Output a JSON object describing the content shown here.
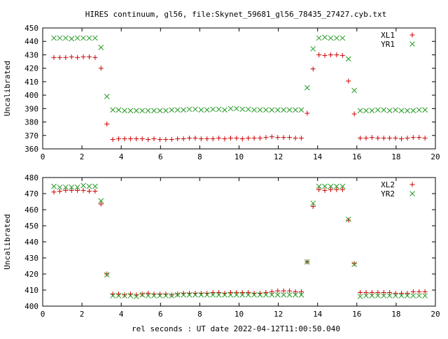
{
  "page": {
    "title": "HIRES continuum, gl56, file:Skynet_59681_gl56_78435_27427.cyb.txt",
    "xlabel": "rel seconds : UT date 2022-04-12T11:00:50.040"
  },
  "chart_data": [
    {
      "type": "scatter",
      "ylabel": "Uncalibrated",
      "xlim": [
        0,
        20
      ],
      "ylim": [
        360,
        450
      ],
      "xticks": [
        "0",
        "2",
        "4",
        "6",
        "8",
        "10",
        "12",
        "14",
        "16",
        "18",
        "20"
      ],
      "yticks": [
        "360",
        "370",
        "380",
        "390",
        "400",
        "410",
        "420",
        "430",
        "440",
        "450"
      ],
      "legend": "top-right",
      "grid": false,
      "x": [
        0.57,
        0.87,
        1.17,
        1.47,
        1.77,
        2.07,
        2.37,
        2.67,
        2.97,
        3.27,
        3.57,
        3.87,
        4.17,
        4.47,
        4.77,
        5.07,
        5.37,
        5.67,
        5.97,
        6.27,
        6.57,
        6.87,
        7.17,
        7.47,
        7.77,
        8.07,
        8.37,
        8.67,
        8.97,
        9.27,
        9.57,
        9.87,
        10.17,
        10.47,
        10.77,
        11.07,
        11.37,
        11.67,
        11.97,
        12.27,
        12.57,
        12.87,
        13.17,
        13.47,
        13.77,
        14.07,
        14.37,
        14.67,
        14.97,
        15.27,
        15.57,
        15.87,
        16.17,
        16.47,
        16.77,
        17.07,
        17.37,
        17.67,
        17.97,
        18.27,
        18.57,
        18.87,
        19.17,
        19.47
      ],
      "series": [
        {
          "name": "XL1",
          "marker": "plus",
          "color": "#cc0000",
          "values": [
            428,
            428,
            428,
            428.5,
            428,
            428.5,
            428.5,
            428,
            420,
            378.5,
            367,
            367.5,
            367.5,
            367.5,
            367.5,
            367.5,
            367,
            367.5,
            367,
            367,
            367,
            367.5,
            367.5,
            368,
            368,
            367.5,
            367.5,
            367.5,
            368,
            367.5,
            368,
            368,
            367.5,
            368,
            368,
            368,
            368.5,
            369,
            368.5,
            368.5,
            368.5,
            368,
            368,
            386.5,
            419.5,
            430,
            429.5,
            430,
            430,
            429.5,
            410.5,
            386,
            368,
            368,
            368.5,
            368,
            368,
            368,
            368,
            367.5,
            368,
            368.5,
            368.5,
            368
          ]
        },
        {
          "name": "YR1",
          "marker": "cross",
          "color": "#229922",
          "values": [
            442.5,
            442.5,
            442.5,
            442,
            442.5,
            442.5,
            442.5,
            442.5,
            435.5,
            399,
            389,
            389,
            388.5,
            388.5,
            388.5,
            388.5,
            388.5,
            388.5,
            388.5,
            388.5,
            389,
            389,
            389,
            389.5,
            389.5,
            389,
            389,
            389.5,
            389.5,
            389,
            390,
            390,
            389.5,
            389.5,
            389,
            389,
            389,
            389,
            389,
            389,
            389,
            389,
            389,
            405.5,
            434.5,
            442.5,
            443,
            442.5,
            442.5,
            442.5,
            427,
            403.5,
            388.5,
            388.5,
            388.5,
            389,
            389,
            388.5,
            389,
            388.5,
            388.5,
            388.5,
            389,
            389
          ]
        }
      ]
    },
    {
      "type": "scatter",
      "ylabel": "Uncalibrated",
      "xlim": [
        0,
        20
      ],
      "ylim": [
        400,
        480
      ],
      "xticks": [
        "0",
        "2",
        "4",
        "6",
        "8",
        "10",
        "12",
        "14",
        "16",
        "18",
        "20"
      ],
      "yticks": [
        "400",
        "410",
        "420",
        "430",
        "440",
        "450",
        "460",
        "470",
        "480"
      ],
      "legend": "top-right",
      "grid": false,
      "x": [
        0.57,
        0.87,
        1.17,
        1.47,
        1.77,
        2.07,
        2.37,
        2.67,
        2.97,
        3.27,
        3.57,
        3.87,
        4.17,
        4.47,
        4.77,
        5.07,
        5.37,
        5.67,
        5.97,
        6.27,
        6.57,
        6.87,
        7.17,
        7.47,
        7.77,
        8.07,
        8.37,
        8.67,
        8.97,
        9.27,
        9.57,
        9.87,
        10.17,
        10.47,
        10.77,
        11.07,
        11.37,
        11.67,
        11.97,
        12.27,
        12.57,
        12.87,
        13.17,
        13.47,
        13.77,
        14.07,
        14.37,
        14.67,
        14.97,
        15.27,
        15.57,
        15.87,
        16.17,
        16.47,
        16.77,
        17.07,
        17.37,
        17.67,
        17.97,
        18.27,
        18.57,
        18.87,
        19.17,
        19.47
      ],
      "series": [
        {
          "name": "XL2",
          "marker": "plus",
          "color": "#cc0000",
          "values": [
            471,
            471.5,
            472,
            472,
            472,
            472,
            471.5,
            471.5,
            463.5,
            420,
            407.5,
            407.5,
            407,
            407.5,
            407,
            407.5,
            408,
            407.5,
            407.5,
            407.5,
            407,
            407.5,
            408,
            408,
            408,
            408,
            408,
            408.5,
            408.5,
            408,
            408.5,
            408.5,
            408.5,
            408.5,
            408,
            408,
            408.5,
            409,
            409.5,
            409.5,
            409.5,
            409,
            409,
            427.5,
            462,
            472.5,
            472,
            472.5,
            472.5,
            472.5,
            453.5,
            426.5,
            408.5,
            408.5,
            408.5,
            408.5,
            408.5,
            408.5,
            408,
            408,
            408,
            409,
            409,
            409
          ]
        },
        {
          "name": "YR2",
          "marker": "cross",
          "color": "#229922",
          "values": [
            474.5,
            474,
            474,
            474,
            474,
            475,
            474.5,
            474.5,
            465.5,
            419.5,
            406.5,
            406.5,
            406.5,
            406.5,
            406,
            407,
            406.5,
            406.5,
            406.5,
            406.5,
            406.5,
            407,
            407,
            407,
            407,
            407,
            407,
            407,
            407,
            407,
            407,
            407,
            407,
            407,
            407,
            407,
            407,
            407,
            407,
            407,
            407,
            407,
            407,
            427.5,
            464,
            474.5,
            474.5,
            474.5,
            474.5,
            474.5,
            454,
            426,
            406,
            406.5,
            406.5,
            406.5,
            406.5,
            406.5,
            406.5,
            406.5,
            406.5,
            406.5,
            406.5,
            406.5
          ]
        }
      ]
    }
  ]
}
